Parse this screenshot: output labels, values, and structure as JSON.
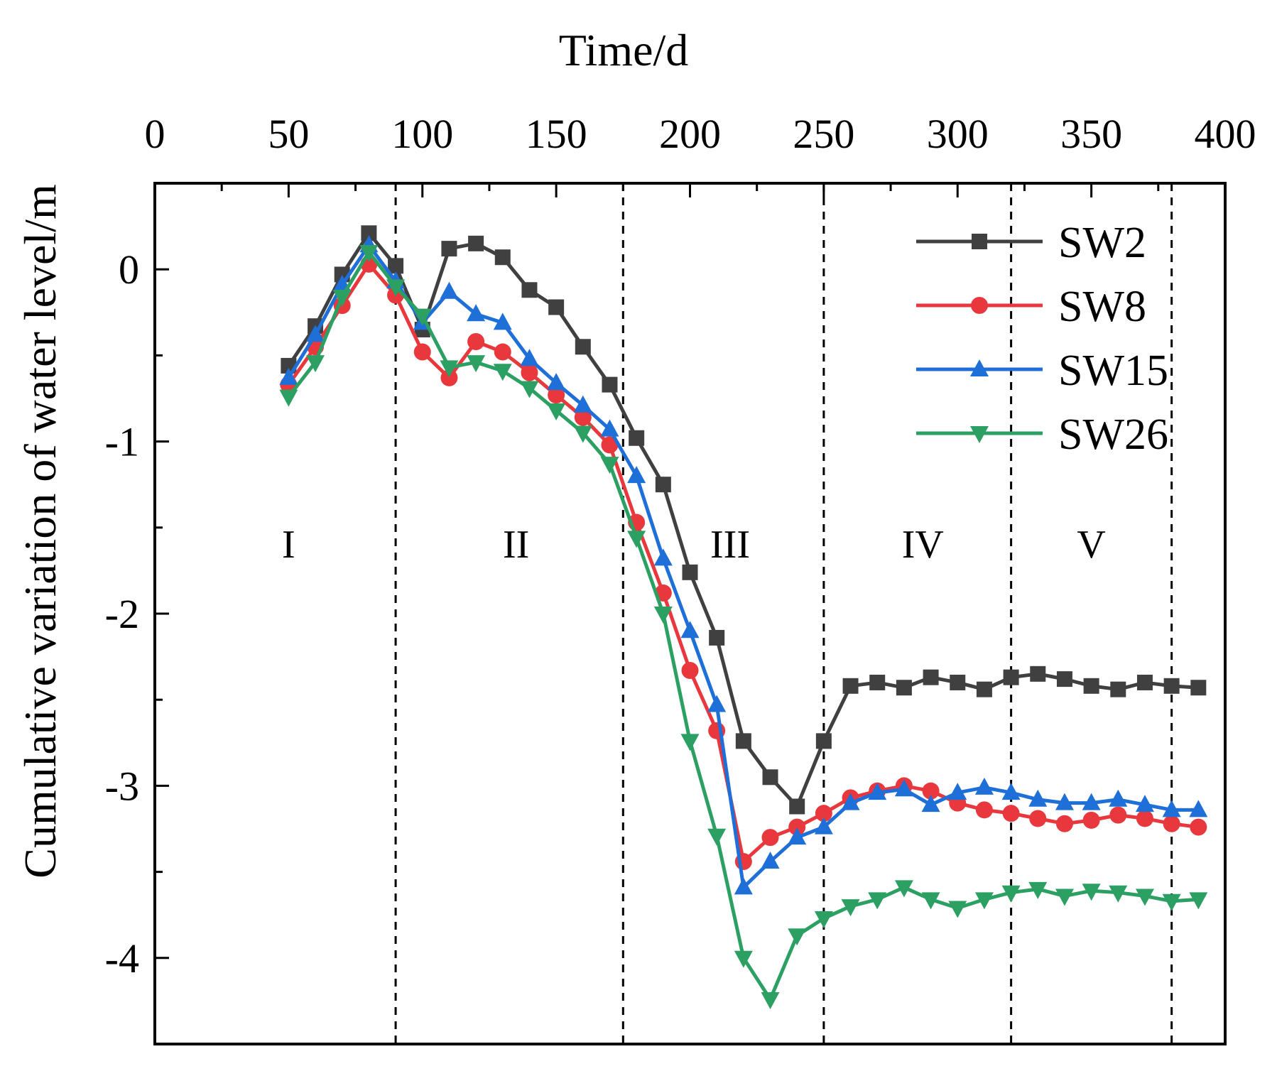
{
  "chart_data": {
    "type": "line",
    "title": "",
    "xlabel": "Time/d",
    "ylabel": "Cumulative variation of water level/m",
    "xlim": [
      0,
      400
    ],
    "ylim": [
      -4.5,
      0.5
    ],
    "xticks": [
      0,
      50,
      100,
      150,
      200,
      250,
      300,
      350,
      400
    ],
    "yticks": [
      0,
      -1,
      -2,
      -3,
      -4
    ],
    "xtick_labels": [
      "0",
      "50",
      "100",
      "150",
      "200",
      "250",
      "300",
      "350",
      "400"
    ],
    "ytick_labels": [
      "0",
      "-1",
      "-2",
      "-3",
      "-4"
    ],
    "x_axis_position": "top",
    "grid": false,
    "legend_position": "top-right",
    "stage_boundaries": [
      90,
      175,
      250,
      320,
      380
    ],
    "stage_labels": [
      {
        "label": "I",
        "x": 50
      },
      {
        "label": "II",
        "x": 135
      },
      {
        "label": "III",
        "x": 215
      },
      {
        "label": "IV",
        "x": 287
      },
      {
        "label": "V",
        "x": 350
      }
    ],
    "stage_label_y": -1.6,
    "x": [
      50,
      60,
      70,
      80,
      90,
      100,
      110,
      120,
      130,
      140,
      150,
      160,
      170,
      180,
      190,
      200,
      210,
      220,
      230,
      240,
      250,
      260,
      270,
      280,
      290,
      300,
      310,
      320,
      330,
      340,
      350,
      360,
      370,
      380,
      390
    ],
    "series": [
      {
        "name": "SW2",
        "color": "#404040",
        "marker": "square",
        "values": [
          -0.56,
          -0.33,
          -0.03,
          0.21,
          0.02,
          -0.35,
          0.12,
          0.15,
          0.07,
          -0.12,
          -0.22,
          -0.45,
          -0.67,
          -0.98,
          -1.25,
          -1.76,
          -2.14,
          -2.74,
          -2.95,
          -3.12,
          -2.74,
          -2.42,
          -2.4,
          -2.43,
          -2.37,
          -2.4,
          -2.44,
          -2.37,
          -2.35,
          -2.38,
          -2.42,
          -2.44,
          -2.4,
          -2.42,
          -2.43
        ]
      },
      {
        "name": "SW8",
        "color": "#e8383d",
        "marker": "circle",
        "values": [
          -0.67,
          -0.45,
          -0.21,
          0.03,
          -0.15,
          -0.48,
          -0.63,
          -0.42,
          -0.48,
          -0.6,
          -0.73,
          -0.86,
          -1.02,
          -1.47,
          -1.88,
          -2.33,
          -2.68,
          -3.44,
          -3.3,
          -3.24,
          -3.16,
          -3.07,
          -3.03,
          -3.0,
          -3.03,
          -3.1,
          -3.14,
          -3.16,
          -3.19,
          -3.22,
          -3.2,
          -3.17,
          -3.19,
          -3.22,
          -3.24
        ]
      },
      {
        "name": "SW15",
        "color": "#1f6fd9",
        "marker": "triangle-up",
        "values": [
          -0.63,
          -0.38,
          -0.09,
          0.14,
          -0.07,
          -0.31,
          -0.13,
          -0.26,
          -0.31,
          -0.52,
          -0.66,
          -0.79,
          -0.93,
          -1.2,
          -1.68,
          -2.1,
          -2.53,
          -3.59,
          -3.44,
          -3.3,
          -3.24,
          -3.1,
          -3.04,
          -3.02,
          -3.11,
          -3.04,
          -3.01,
          -3.04,
          -3.08,
          -3.1,
          -3.1,
          -3.08,
          -3.11,
          -3.14,
          -3.14
        ]
      },
      {
        "name": "SW26",
        "color": "#2ca062",
        "marker": "triangle-down",
        "values": [
          -0.74,
          -0.54,
          -0.16,
          0.1,
          -0.1,
          -0.27,
          -0.57,
          -0.54,
          -0.59,
          -0.69,
          -0.82,
          -0.95,
          -1.13,
          -1.56,
          -2.0,
          -2.74,
          -3.29,
          -4.0,
          -4.24,
          -3.87,
          -3.77,
          -3.7,
          -3.66,
          -3.59,
          -3.66,
          -3.71,
          -3.66,
          -3.62,
          -3.6,
          -3.64,
          -3.61,
          -3.62,
          -3.64,
          -3.67,
          -3.66
        ]
      }
    ]
  }
}
